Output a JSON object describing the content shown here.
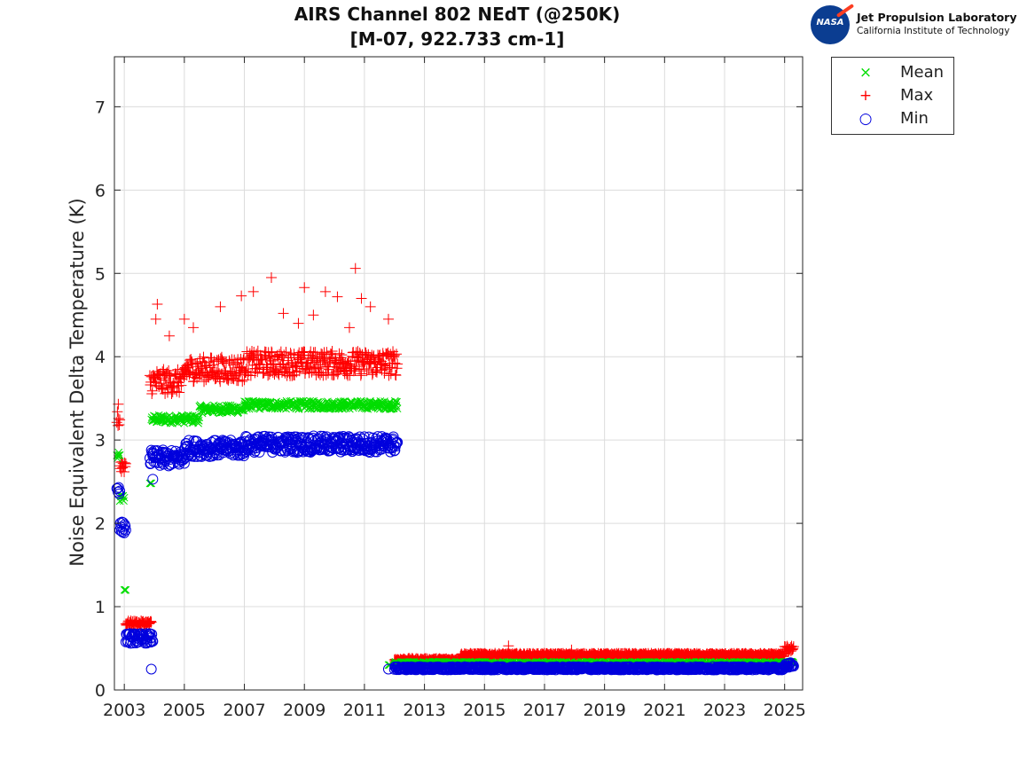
{
  "chart_data": {
    "type": "scatter",
    "title": "AIRS Channel 802 NEdT (@250K)",
    "subtitle": "[M-07, 922.733 cm-1]",
    "xlabel": "",
    "ylabel": "Noise Equivalent Delta Temperature (K)",
    "xlim": [
      2002.67,
      2025.6
    ],
    "ylim": [
      0,
      7.6
    ],
    "xticks": [
      2003,
      2005,
      2007,
      2009,
      2011,
      2013,
      2015,
      2017,
      2019,
      2021,
      2023,
      2025
    ],
    "xtick_labels": [
      "2003",
      "2005",
      "2007",
      "2009",
      "2011",
      "2013",
      "2015",
      "2017",
      "2019",
      "2021",
      "2023",
      "2025"
    ],
    "yticks": [
      0,
      1,
      2,
      3,
      4,
      5,
      6,
      7
    ],
    "ytick_labels": [
      "0",
      "1",
      "2",
      "3",
      "4",
      "5",
      "6",
      "7"
    ],
    "grid": true,
    "legend_position": "outside-top-right",
    "series": [
      {
        "name": "Mean",
        "marker": "x",
        "color": "#00dd00",
        "segments": [
          {
            "x_start": 2002.75,
            "x_end": 2002.85,
            "y_center": 2.8,
            "spread": 0.05
          },
          {
            "x_start": 2002.85,
            "x_end": 2003.0,
            "y_center": 2.3,
            "spread": 0.05
          },
          {
            "x_start": 2003.0,
            "x_end": 2003.05,
            "y_center": 1.2,
            "spread": 0.0
          },
          {
            "x_start": 2003.85,
            "x_end": 2003.9,
            "y_center": 2.48,
            "spread": 0.0
          },
          {
            "x_start": 2003.9,
            "x_end": 2005.5,
            "y_center": 3.25,
            "spread": 0.05
          },
          {
            "x_start": 2005.5,
            "x_end": 2007.0,
            "y_center": 3.37,
            "spread": 0.05
          },
          {
            "x_start": 2007.0,
            "x_end": 2012.1,
            "y_center": 3.42,
            "spread": 0.05
          },
          {
            "x_start": 2011.8,
            "x_end": 2011.85,
            "y_center": 0.3,
            "spread": 0.0
          },
          {
            "x_start": 2012.0,
            "x_end": 2025.3,
            "y_center": 0.32,
            "spread": 0.02
          }
        ]
      },
      {
        "name": "Max",
        "marker": "+",
        "color": "#ff0000",
        "segments": [
          {
            "x_start": 2002.75,
            "x_end": 2002.85,
            "y_center": 3.25,
            "spread": 0.1
          },
          {
            "x_start": 2002.85,
            "x_end": 2003.05,
            "y_center": 2.7,
            "spread": 0.1
          },
          {
            "x_start": 2003.05,
            "x_end": 2003.9,
            "y_center": 0.8,
            "spread": 0.03
          },
          {
            "x_start": 2003.85,
            "x_end": 2005.0,
            "y_center": 3.7,
            "spread": 0.15
          },
          {
            "x_start": 2005.0,
            "x_end": 2007.0,
            "y_center": 3.85,
            "spread": 0.15
          },
          {
            "x_start": 2007.0,
            "x_end": 2012.1,
            "y_center": 3.92,
            "spread": 0.15
          },
          {
            "x_start": 2012.0,
            "x_end": 2014.2,
            "y_center": 0.36,
            "spread": 0.02
          },
          {
            "x_start": 2014.2,
            "x_end": 2025.0,
            "y_center": 0.42,
            "spread": 0.02
          },
          {
            "x_start": 2025.0,
            "x_end": 2025.3,
            "y_center": 0.5,
            "spread": 0.05
          }
        ],
        "outliers": [
          {
            "x": 2002.8,
            "y": 3.43
          },
          {
            "x": 2004.1,
            "y": 4.63
          },
          {
            "x": 2004.05,
            "y": 4.45
          },
          {
            "x": 2004.5,
            "y": 4.25
          },
          {
            "x": 2005.0,
            "y": 4.45
          },
          {
            "x": 2005.3,
            "y": 4.35
          },
          {
            "x": 2006.2,
            "y": 4.6
          },
          {
            "x": 2006.9,
            "y": 4.73
          },
          {
            "x": 2007.3,
            "y": 4.78
          },
          {
            "x": 2007.9,
            "y": 4.95
          },
          {
            "x": 2008.3,
            "y": 4.52
          },
          {
            "x": 2008.8,
            "y": 4.4
          },
          {
            "x": 2009.0,
            "y": 4.83
          },
          {
            "x": 2009.3,
            "y": 4.5
          },
          {
            "x": 2009.7,
            "y": 4.78
          },
          {
            "x": 2010.1,
            "y": 4.72
          },
          {
            "x": 2010.5,
            "y": 4.35
          },
          {
            "x": 2010.7,
            "y": 5.06
          },
          {
            "x": 2010.9,
            "y": 4.7
          },
          {
            "x": 2011.2,
            "y": 4.6
          },
          {
            "x": 2011.8,
            "y": 4.45
          },
          {
            "x": 2015.8,
            "y": 0.53
          },
          {
            "x": 2017.9,
            "y": 0.48
          }
        ]
      },
      {
        "name": "Min",
        "marker": "o",
        "color": "#0000dd",
        "segments": [
          {
            "x_start": 2002.75,
            "x_end": 2002.85,
            "y_center": 2.42,
            "spread": 0.07
          },
          {
            "x_start": 2002.85,
            "x_end": 2003.05,
            "y_center": 1.95,
            "spread": 0.07
          },
          {
            "x_start": 2003.05,
            "x_end": 2003.95,
            "y_center": 0.62,
            "spread": 0.06
          },
          {
            "x_start": 2003.85,
            "x_end": 2005.0,
            "y_center": 2.78,
            "spread": 0.1
          },
          {
            "x_start": 2005.0,
            "x_end": 2007.0,
            "y_center": 2.9,
            "spread": 0.1
          },
          {
            "x_start": 2007.0,
            "x_end": 2012.1,
            "y_center": 2.95,
            "spread": 0.1
          },
          {
            "x_start": 2012.0,
            "x_end": 2025.0,
            "y_center": 0.26,
            "spread": 0.02
          },
          {
            "x_start": 2025.0,
            "x_end": 2025.3,
            "y_center": 0.3,
            "spread": 0.03
          }
        ],
        "outliers": [
          {
            "x": 2003.9,
            "y": 0.25
          },
          {
            "x": 2003.95,
            "y": 2.53
          },
          {
            "x": 2011.8,
            "y": 0.25
          }
        ]
      }
    ]
  },
  "logo": {
    "badge": "NASA",
    "line1": "Jet Propulsion Laboratory",
    "line2": "California Institute of Technology"
  },
  "legend": {
    "items": [
      {
        "label": "Mean",
        "symbol": "×",
        "color": "#00dd00"
      },
      {
        "label": "Max",
        "symbol": "+",
        "color": "#ff0000"
      },
      {
        "label": "Min",
        "symbol": "○",
        "color": "#0000dd"
      }
    ]
  }
}
